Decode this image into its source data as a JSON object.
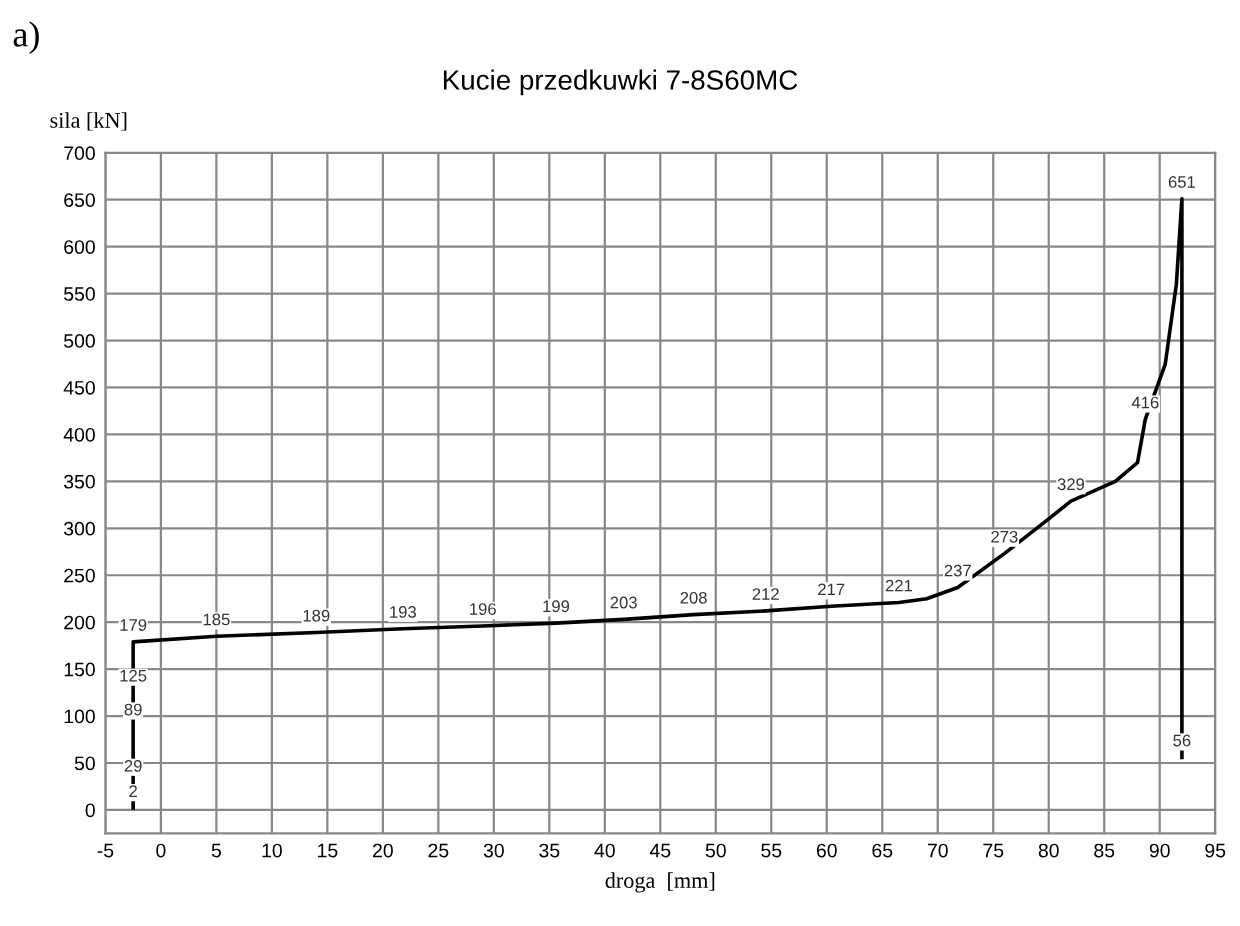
{
  "chart_data": {
    "type": "line",
    "title": "Kucie przedkuwki 7-8S60MC",
    "xlabel": "droga  [mm]",
    "ylabel": "sila [kN]",
    "annotations": [
      "a)"
    ],
    "series": [
      {
        "color": "#000000",
        "x": [
          -2.5,
          -2.5,
          -2.5,
          -2.5,
          -2.5,
          5,
          14,
          21.8,
          29,
          35.6,
          41.7,
          48,
          54.5,
          60.4,
          66.5,
          69,
          71.8,
          76,
          80,
          82,
          86,
          88,
          88.7,
          90.5,
          91.5,
          92,
          92
        ],
        "values": [
          2,
          29,
          89,
          125,
          179,
          185,
          189,
          193,
          196,
          199,
          203,
          208,
          212,
          217,
          221,
          225,
          237,
          273,
          310,
          329,
          350,
          370,
          416,
          475,
          560,
          651,
          56
        ],
        "value_labels": [
          "2",
          "29",
          "89",
          "125",
          "179",
          "185",
          "189",
          "193",
          "196",
          "199",
          "203",
          "208",
          "212",
          "217",
          "221",
          null,
          "237",
          "273",
          null,
          "329",
          null,
          null,
          "416",
          null,
          null,
          "651",
          "56"
        ]
      }
    ],
    "xlim": [
      -5,
      95
    ],
    "ylim": [
      -25,
      700
    ],
    "xticks": [
      -5,
      0,
      5,
      10,
      15,
      20,
      25,
      30,
      35,
      40,
      45,
      50,
      55,
      60,
      65,
      70,
      75,
      80,
      85,
      90,
      95
    ],
    "yticks": [
      0,
      50,
      100,
      150,
      200,
      250,
      300,
      350,
      400,
      450,
      500,
      550,
      600,
      650,
      700
    ],
    "grid": true,
    "legend": false,
    "marker": "none",
    "line_style": "solid"
  }
}
